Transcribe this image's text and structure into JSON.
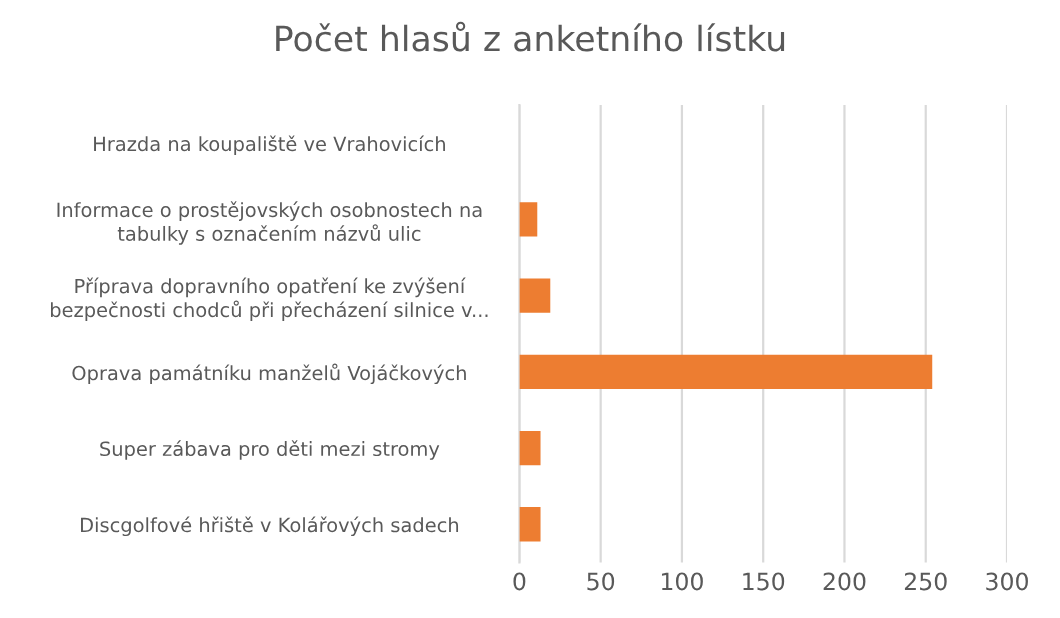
{
  "chart_data": {
    "type": "bar",
    "orientation": "horizontal",
    "title": "Počet hlasů z anketního lístku",
    "categories": [
      "Hrazda na koupaliště ve Vrahovicích",
      "Informace o prostějovských osobnostech na\ntabulky s označením názvů ulic",
      "Příprava dopravního opatření ke zvýšení\nbezpečnosti chodců při přecházení silnice v...",
      "Oprava památníku manželů Vojáčkových",
      "Super zábava pro děti mezi stromy",
      "Discgolfové hřiště v Kolářových sadech"
    ],
    "values": [
      0,
      11,
      19,
      254,
      13,
      13
    ],
    "color": "#ed7d31",
    "xlim": [
      0,
      300
    ],
    "xticks": [
      0,
      50,
      100,
      150,
      200,
      250,
      300
    ],
    "grid": "x"
  }
}
